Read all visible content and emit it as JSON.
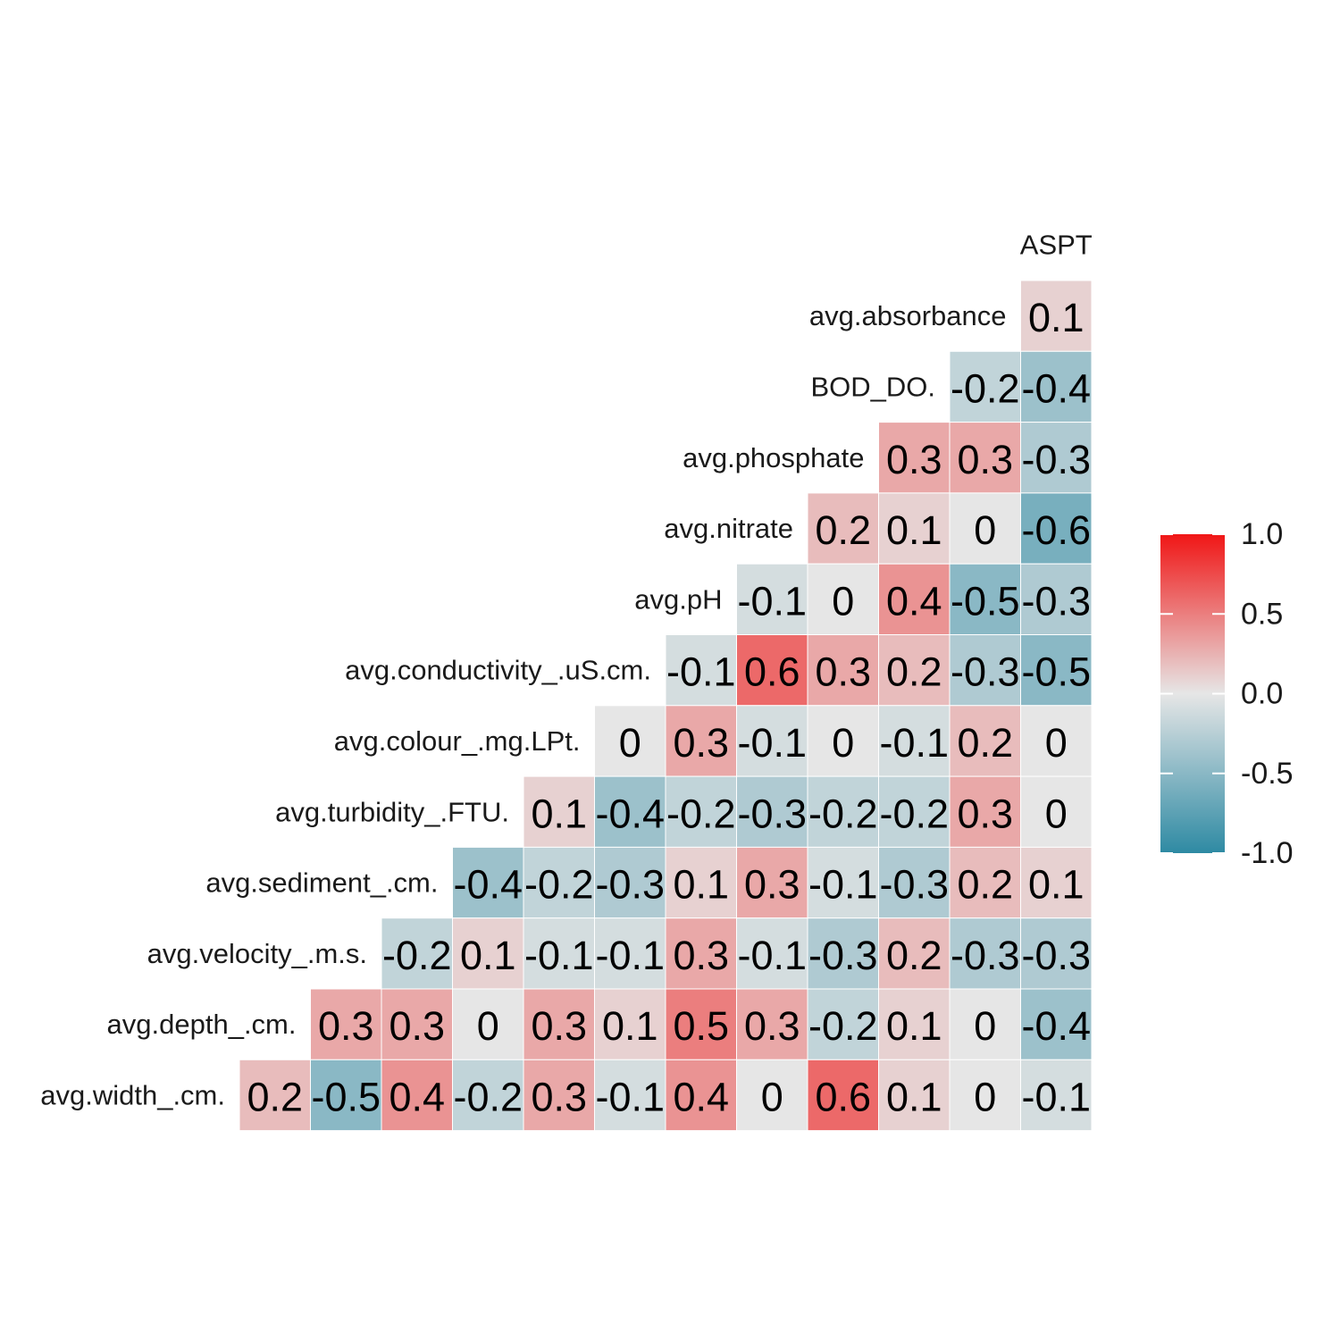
{
  "chart_data": {
    "type": "heatmap",
    "variables": [
      "avg.width_.cm.",
      "avg.depth_.cm.",
      "avg.velocity_.m.s.",
      "avg.sediment_.cm.",
      "avg.turbidity_.FTU.",
      "avg.colour_.mg.LPt.",
      "avg.conductivity_.uS.cm.",
      "avg.pH",
      "avg.nitrate",
      "avg.phosphate",
      "BOD_DO.",
      "avg.absorbance",
      "ASPT"
    ],
    "rows": [
      {
        "label": "avg.absorbance",
        "values": [
          0.1
        ]
      },
      {
        "label": "BOD_DO.",
        "values": [
          -0.2,
          -0.4
        ]
      },
      {
        "label": "avg.phosphate",
        "values": [
          0.3,
          0.3,
          -0.3
        ]
      },
      {
        "label": "avg.nitrate",
        "values": [
          0.2,
          0.1,
          0,
          -0.6
        ]
      },
      {
        "label": "avg.pH",
        "values": [
          -0.1,
          0,
          0.4,
          -0.5,
          -0.3
        ]
      },
      {
        "label": "avg.conductivity_.uS.cm.",
        "values": [
          -0.1,
          0.6,
          0.3,
          0.2,
          -0.3,
          -0.5
        ]
      },
      {
        "label": "avg.colour_.mg.LPt.",
        "values": [
          0,
          0.3,
          -0.1,
          0,
          -0.1,
          0.2,
          0
        ]
      },
      {
        "label": "avg.turbidity_.FTU.",
        "values": [
          0.1,
          -0.4,
          -0.2,
          -0.3,
          -0.2,
          -0.2,
          0.3,
          0
        ]
      },
      {
        "label": "avg.sediment_.cm.",
        "values": [
          -0.4,
          -0.2,
          -0.3,
          0.1,
          0.3,
          -0.1,
          -0.3,
          0.2,
          0.1
        ]
      },
      {
        "label": "avg.velocity_.m.s.",
        "values": [
          -0.2,
          0.1,
          -0.1,
          -0.1,
          0.3,
          -0.1,
          -0.3,
          0.2,
          -0.3,
          -0.3
        ]
      },
      {
        "label": "avg.depth_.cm.",
        "values": [
          0.3,
          0.3,
          0,
          0.3,
          0.1,
          0.5,
          0.3,
          -0.2,
          0.1,
          0,
          -0.4
        ]
      },
      {
        "label": "avg.width_.cm.",
        "values": [
          0.2,
          -0.5,
          0.4,
          -0.2,
          0.3,
          -0.1,
          0.4,
          0,
          0.6,
          0.1,
          0,
          -0.1
        ]
      }
    ],
    "legend": {
      "limits": [
        -1.0,
        1.0
      ],
      "ticks": [
        "1.0",
        "0.5",
        "0.0",
        "-0.5",
        "-1.0"
      ],
      "tick_values": [
        1.0,
        0.5,
        0.0,
        -0.5,
        -1.0
      ],
      "placement": "right"
    },
    "colors": {
      "low": "#2e8aa3",
      "mid": "#e6e6e6",
      "high": "#f01616"
    }
  }
}
